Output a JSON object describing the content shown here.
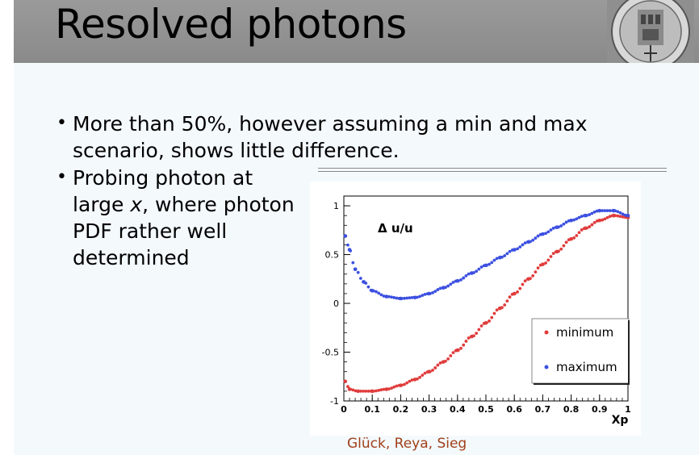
{
  "slide": {
    "title": "Resolved photons",
    "bullets": [
      {
        "lines": [
          "More than 50%, however assuming a min and max",
          "scenario,  shows little difference."
        ]
      },
      {
        "lines": [
          "Probing photon at",
          "large x, where photon",
          "PDF rather well",
          "determined"
        ]
      }
    ],
    "citation": "Glück, Reya, Sieg"
  },
  "colors": {
    "title_bar": "#8f8f8f",
    "minimum": "#e03c3c",
    "maximum": "#3c50e0",
    "citation": "#a0401a"
  },
  "chart_data": {
    "type": "scatter",
    "annotation": "Δ u/u",
    "xlabel": "Xp",
    "ylabel": "",
    "xlim": [
      0,
      1
    ],
    "ylim": [
      -1,
      1.1
    ],
    "x_ticks": [
      "0",
      "0.1",
      "0.2",
      "0.3",
      "0.4",
      "0.5",
      "0.6",
      "0.7",
      "0.8",
      "0.9",
      "1"
    ],
    "y_ticks": [
      "-1",
      "-0.5",
      "0",
      "0.5",
      "1"
    ],
    "legend_position": "bottom-right",
    "series": [
      {
        "name": "minimum",
        "color": "#e03c3c",
        "x": [
          0.005,
          0.02,
          0.05,
          0.1,
          0.15,
          0.2,
          0.25,
          0.3,
          0.35,
          0.4,
          0.45,
          0.5,
          0.55,
          0.6,
          0.65,
          0.7,
          0.75,
          0.8,
          0.85,
          0.9,
          0.95,
          1.0
        ],
        "y": [
          -0.8,
          -0.88,
          -0.9,
          -0.9,
          -0.88,
          -0.84,
          -0.78,
          -0.7,
          -0.6,
          -0.48,
          -0.34,
          -0.2,
          -0.05,
          0.1,
          0.25,
          0.4,
          0.53,
          0.66,
          0.77,
          0.85,
          0.9,
          0.88
        ]
      },
      {
        "name": "maximum",
        "color": "#3c50e0",
        "x": [
          0.005,
          0.02,
          0.04,
          0.07,
          0.1,
          0.15,
          0.2,
          0.25,
          0.3,
          0.35,
          0.4,
          0.45,
          0.5,
          0.55,
          0.6,
          0.65,
          0.7,
          0.75,
          0.8,
          0.85,
          0.9,
          0.95,
          1.0
        ],
        "y": [
          0.69,
          0.55,
          0.35,
          0.22,
          0.13,
          0.07,
          0.05,
          0.06,
          0.1,
          0.16,
          0.23,
          0.31,
          0.39,
          0.47,
          0.55,
          0.63,
          0.71,
          0.78,
          0.85,
          0.9,
          0.95,
          0.95,
          0.9
        ]
      }
    ]
  }
}
